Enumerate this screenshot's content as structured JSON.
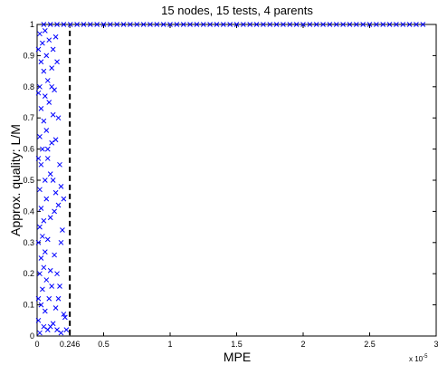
{
  "chart_data": {
    "type": "scatter",
    "title": "15 nodes, 15 tests, 4 parents",
    "xlabel": "MPE",
    "ylabel": "Approx. quality: L/M",
    "x_exponent_label": "x 10",
    "x_exponent_power": "-5",
    "xlim": [
      0,
      3
    ],
    "ylim": [
      0,
      1
    ],
    "xticks": [
      "0",
      "0.246",
      "0.5",
      "1",
      "1.5",
      "2",
      "2.5",
      "3"
    ],
    "yticks": [
      "0",
      "0.1",
      "0.2",
      "0.3",
      "0.4",
      "0.5",
      "0.6",
      "0.7",
      "0.8",
      "0.9",
      "1"
    ],
    "marker": "x",
    "marker_color": "#0000ff",
    "threshold_line": {
      "x": 0.246,
      "style": "dashed",
      "color": "#000000"
    },
    "series": [
      {
        "points": [
          [
            0.02,
            0.01
          ],
          [
            0.05,
            0.03
          ],
          [
            0.01,
            0.05
          ],
          [
            0.08,
            0.02
          ],
          [
            0.12,
            0.04
          ],
          [
            0.15,
            0.02
          ],
          [
            0.18,
            0.01
          ],
          [
            0.22,
            0.02
          ],
          [
            0.06,
            0.08
          ],
          [
            0.03,
            0.1
          ],
          [
            0.09,
            0.12
          ],
          [
            0.14,
            0.09
          ],
          [
            0.2,
            0.07
          ],
          [
            0.04,
            0.15
          ],
          [
            0.07,
            0.18
          ],
          [
            0.11,
            0.16
          ],
          [
            0.02,
            0.2
          ],
          [
            0.05,
            0.22
          ],
          [
            0.1,
            0.21
          ],
          [
            0.03,
            0.25
          ],
          [
            0.06,
            0.27
          ],
          [
            0.01,
            0.3
          ],
          [
            0.04,
            0.32
          ],
          [
            0.08,
            0.31
          ],
          [
            0.02,
            0.35
          ],
          [
            0.05,
            0.37
          ],
          [
            0.13,
            0.4
          ],
          [
            0.16,
            0.42
          ],
          [
            0.03,
            0.41
          ],
          [
            0.07,
            0.44
          ],
          [
            0.14,
            0.46
          ],
          [
            0.18,
            0.48
          ],
          [
            0.02,
            0.47
          ],
          [
            0.06,
            0.5
          ],
          [
            0.1,
            0.52
          ],
          [
            0.03,
            0.55
          ],
          [
            0.08,
            0.57
          ],
          [
            0.04,
            0.6
          ],
          [
            0.11,
            0.62
          ],
          [
            0.02,
            0.64
          ],
          [
            0.07,
            0.66
          ],
          [
            0.05,
            0.69
          ],
          [
            0.12,
            0.71
          ],
          [
            0.03,
            0.73
          ],
          [
            0.09,
            0.75
          ],
          [
            0.06,
            0.77
          ],
          [
            0.13,
            0.79
          ],
          [
            0.02,
            0.8
          ],
          [
            0.08,
            0.82
          ],
          [
            0.05,
            0.85
          ],
          [
            0.11,
            0.86
          ],
          [
            0.03,
            0.88
          ],
          [
            0.07,
            0.9
          ],
          [
            0.12,
            0.92
          ],
          [
            0.04,
            0.94
          ],
          [
            0.09,
            0.95
          ],
          [
            0.02,
            0.97
          ],
          [
            0.06,
            0.98
          ],
          [
            0.15,
            0.88
          ],
          [
            0.14,
            0.63
          ],
          [
            0.17,
            0.55
          ],
          [
            0.19,
            0.34
          ],
          [
            0.13,
            0.26
          ],
          [
            0.16,
            0.12
          ],
          [
            0.21,
            0.06
          ],
          [
            0.1,
            0.03
          ],
          [
            0.01,
            0.12
          ],
          [
            0.01,
            0.57
          ],
          [
            0.01,
            0.78
          ],
          [
            0.01,
            0.92
          ],
          [
            0.15,
            0.2
          ],
          [
            0.18,
            0.3
          ],
          [
            0.12,
            0.5
          ],
          [
            0.16,
            0.7
          ],
          [
            0.14,
            0.96
          ],
          [
            0.2,
            0.44
          ],
          [
            0.17,
            0.16
          ],
          [
            0.1,
            0.38
          ],
          [
            0.08,
            0.6
          ],
          [
            0.11,
            0.8
          ],
          [
            0.05,
            1
          ],
          [
            0.1,
            1
          ],
          [
            0.15,
            1
          ],
          [
            0.2,
            1
          ],
          [
            0.25,
            1
          ],
          [
            0.3,
            1
          ],
          [
            0.35,
            1
          ],
          [
            0.4,
            1
          ],
          [
            0.45,
            1
          ],
          [
            0.5,
            1
          ],
          [
            0.55,
            1
          ],
          [
            0.6,
            1
          ],
          [
            0.65,
            1
          ],
          [
            0.7,
            1
          ],
          [
            0.75,
            1
          ],
          [
            0.8,
            1
          ],
          [
            0.85,
            1
          ],
          [
            0.9,
            1
          ],
          [
            0.95,
            1
          ],
          [
            1.0,
            1
          ],
          [
            1.05,
            1
          ],
          [
            1.1,
            1
          ],
          [
            1.15,
            1
          ],
          [
            1.2,
            1
          ],
          [
            1.25,
            1
          ],
          [
            1.3,
            1
          ],
          [
            1.35,
            1
          ],
          [
            1.4,
            1
          ],
          [
            1.45,
            1
          ],
          [
            1.5,
            1
          ],
          [
            1.55,
            1
          ],
          [
            1.6,
            1
          ],
          [
            1.65,
            1
          ],
          [
            1.7,
            1
          ],
          [
            1.75,
            1
          ],
          [
            1.8,
            1
          ],
          [
            1.85,
            1
          ],
          [
            1.9,
            1
          ],
          [
            1.95,
            1
          ],
          [
            2.0,
            1
          ],
          [
            2.05,
            1
          ],
          [
            2.1,
            1
          ],
          [
            2.15,
            1
          ],
          [
            2.2,
            1
          ],
          [
            2.25,
            1
          ],
          [
            2.3,
            1
          ],
          [
            2.35,
            1
          ],
          [
            2.4,
            1
          ],
          [
            2.45,
            1
          ],
          [
            2.5,
            1
          ],
          [
            2.55,
            1
          ],
          [
            2.6,
            1
          ],
          [
            2.65,
            1
          ],
          [
            2.7,
            1
          ],
          [
            2.75,
            1
          ],
          [
            2.8,
            1
          ],
          [
            2.85,
            1
          ],
          [
            2.9,
            1
          ]
        ]
      }
    ]
  }
}
